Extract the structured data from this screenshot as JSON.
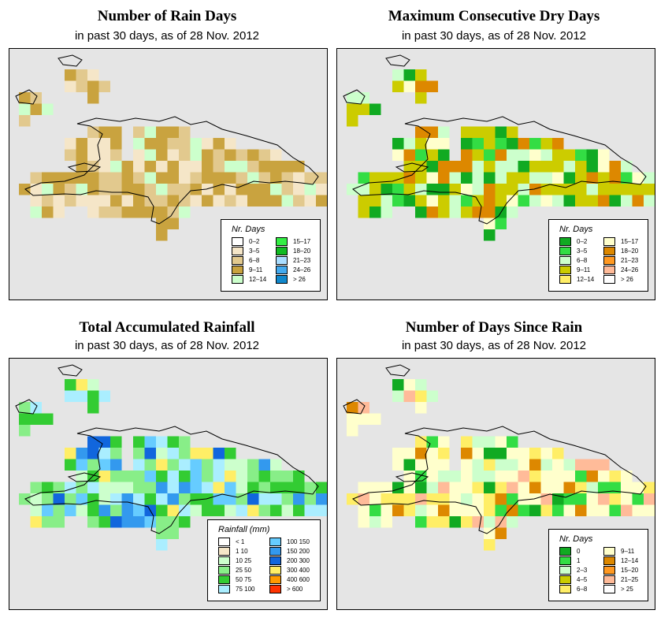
{
  "date_line": "in past 30 days, as of  28 Nov. 2012",
  "panels": [
    {
      "id": "rain-days",
      "title": "Number of Rain Days",
      "subtitle": "in past 30 days, as of  28 Nov. 2012",
      "legend": {
        "title": "Nr. Days",
        "items": [
          {
            "label": "0–2",
            "color": "#ffffff"
          },
          {
            "label": "3–5",
            "color": "#f5e6c8"
          },
          {
            "label": "6–8",
            "color": "#e2c98e"
          },
          {
            "label": "9–11",
            "color": "#c9a33f"
          },
          {
            "label": "12–14",
            "color": "#ccffcc"
          },
          {
            "label": "15–17",
            "color": "#33ee44"
          },
          {
            "label": "18–20",
            "color": "#11bb22"
          },
          {
            "label": "21–23",
            "color": "#aaddff"
          },
          {
            "label": "24–26",
            "color": "#44aaee"
          },
          {
            "label": "> 26",
            "color": "#1188cc"
          }
        ]
      }
    },
    {
      "id": "dry-days",
      "title": "Maximum Consecutive Dry Days",
      "subtitle": "in past 30 days, as of  28 Nov. 2012",
      "legend": {
        "title": "Nr. Days",
        "items": [
          {
            "label": "0–2",
            "color": "#11aa22"
          },
          {
            "label": "3–5",
            "color": "#33dd44"
          },
          {
            "label": "6–8",
            "color": "#ccffcc"
          },
          {
            "label": "9–11",
            "color": "#cccc00"
          },
          {
            "label": "12–14",
            "color": "#ffee66"
          },
          {
            "label": "15–17",
            "color": "#ffffcc"
          },
          {
            "label": "18–20",
            "color": "#dd8800"
          },
          {
            "label": "21–23",
            "color": "#ff9922"
          },
          {
            "label": "24–26",
            "color": "#ffbb99"
          },
          {
            "label": "> 26",
            "color": "#ffffff"
          }
        ]
      }
    },
    {
      "id": "rainfall",
      "title": "Total Accumulated Rainfall",
      "subtitle": "in past 30 days, as of  28 Nov. 2012",
      "legend": {
        "title": "Rainfall (mm)",
        "items": [
          {
            "label": "< 1",
            "color": "#ffffff"
          },
          {
            "label": "1    10",
            "color": "#f5e6c8"
          },
          {
            "label": "10    25",
            "color": "#ccffcc"
          },
          {
            "label": "25    50",
            "color": "#88ee88"
          },
          {
            "label": "50    75",
            "color": "#33cc33"
          },
          {
            "label": "75   100",
            "color": "#aaeeff"
          },
          {
            "label": "100   150",
            "color": "#66ccff"
          },
          {
            "label": "150   200",
            "color": "#3399ee"
          },
          {
            "label": "200   300",
            "color": "#1166dd"
          },
          {
            "label": "300   400",
            "color": "#ffee66"
          },
          {
            "label": "400   600",
            "color": "#ff9900"
          },
          {
            "label": "> 600",
            "color": "#ff3300"
          }
        ]
      }
    },
    {
      "id": "days-since-rain",
      "title": "Number of Days Since Rain",
      "subtitle": "in past 30 days, as of  28 Nov. 2012",
      "legend": {
        "title": "Nr. Days",
        "items": [
          {
            "label": "0",
            "color": "#11aa22"
          },
          {
            "label": "1",
            "color": "#33dd44"
          },
          {
            "label": "2–3",
            "color": "#ccffcc"
          },
          {
            "label": "4–5",
            "color": "#cccc00"
          },
          {
            "label": "6–8",
            "color": "#ffee66"
          },
          {
            "label": "9–11",
            "color": "#ffffcc"
          },
          {
            "label": "12–14",
            "color": "#dd8800"
          },
          {
            "label": "15–20",
            "color": "#ff9922"
          },
          {
            "label": "21–25",
            "color": "#ffbb99"
          },
          {
            "label": "> 25",
            "color": "#ffffff"
          }
        ]
      }
    }
  ],
  "colors": {
    "ocean": "#e5e5e5",
    "coastline": "#000000"
  }
}
